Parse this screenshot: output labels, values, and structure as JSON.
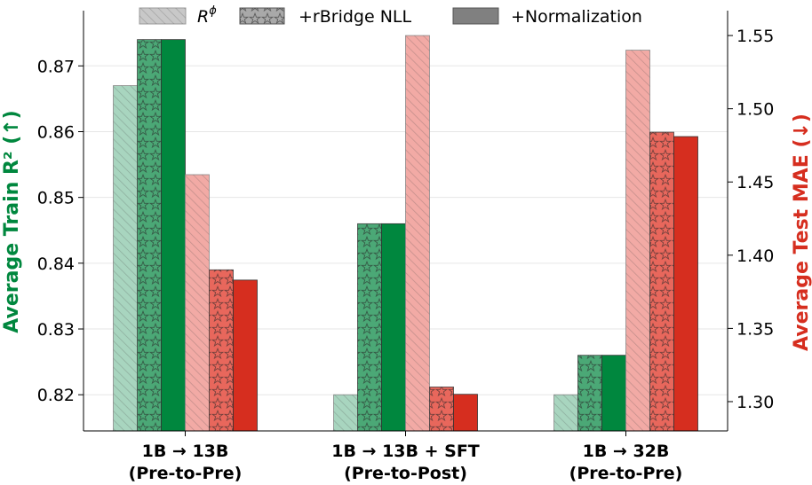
{
  "chart_data": {
    "type": "bar",
    "categories": [
      {
        "line1": "1B → 13B",
        "line2": "(Pre-to-Pre)"
      },
      {
        "line1": "1B → 13B + SFT",
        "line2": "(Pre-to-Post)"
      },
      {
        "line1": "1B → 32B",
        "line2": "(Pre-to-Pre)"
      }
    ],
    "left_axis": {
      "label": "Average Train R² (↑)",
      "color": "#00873e",
      "ylim": [
        0.8145,
        0.8784
      ],
      "ticks": [
        0.82,
        0.83,
        0.84,
        0.85,
        0.86,
        0.87
      ],
      "tick_labels": [
        "0.82",
        "0.83",
        "0.84",
        "0.85",
        "0.86",
        "0.87"
      ]
    },
    "right_axis": {
      "label": "Average Test MAE (↓)",
      "color": "#d62e1f",
      "ylim": [
        1.28,
        1.567
      ],
      "ticks": [
        1.3,
        1.35,
        1.4,
        1.45,
        1.5,
        1.55
      ],
      "tick_labels": [
        "1.30",
        "1.35",
        "1.40",
        "1.45",
        "1.50",
        "1.55"
      ]
    },
    "legend": {
      "items": [
        {
          "label_base": "R",
          "label_sup": "ϕ",
          "pattern": "hatch"
        },
        {
          "label": "+rBridge NLL",
          "pattern": "stars"
        },
        {
          "label": "+Normalization",
          "pattern": "solid"
        }
      ],
      "placement": "top-center"
    },
    "grid": true,
    "series": [
      {
        "name": "Train R² — R^ϕ",
        "axis": "left",
        "pattern": "hatch",
        "color": "#a8d5bf",
        "values": [
          0.867,
          0.82,
          0.82
        ]
      },
      {
        "name": "Train R² — +rBridge NLL",
        "axis": "left",
        "pattern": "stars",
        "color": "#4ba876",
        "values": [
          0.874,
          0.846,
          0.826
        ]
      },
      {
        "name": "Train R² — +Normalization",
        "axis": "left",
        "pattern": "solid",
        "color": "#00873e",
        "values": [
          0.874,
          0.846,
          0.826
        ]
      },
      {
        "name": "Test MAE — R^ϕ",
        "axis": "right",
        "pattern": "hatch",
        "color": "#f2aaa5",
        "values": [
          1.455,
          1.55,
          1.54
        ]
      },
      {
        "name": "Test MAE — +rBridge NLL",
        "axis": "right",
        "pattern": "stars",
        "color": "#e8675c",
        "values": [
          1.39,
          1.31,
          1.484
        ]
      },
      {
        "name": "Test MAE — +Normalization",
        "axis": "right",
        "pattern": "solid",
        "color": "#d62e1f",
        "values": [
          1.383,
          1.305,
          1.481
        ]
      }
    ]
  }
}
